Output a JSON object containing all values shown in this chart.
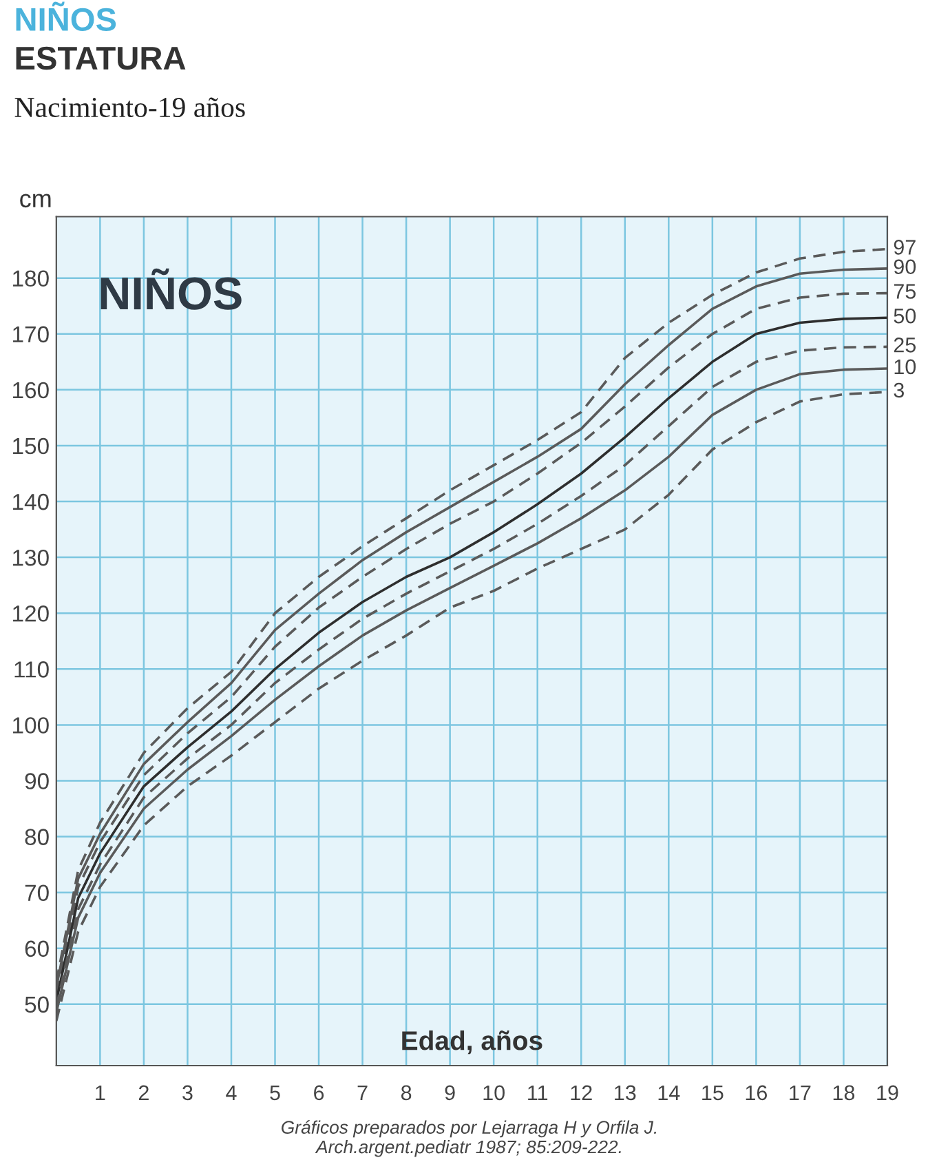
{
  "chart_data": {
    "type": "line",
    "title": "ESTATURA",
    "subtitle": "Nacimiento-19 años",
    "ylabel": "cm",
    "xlabel": "Edad, años",
    "annotations": [
      "NIÑOS",
      "NIÑOS",
      "Gráficos preparados por Lejarraga H y Orfila J.\nArch.argent.pediatr 1987; 85:209-222."
    ],
    "x": [
      0,
      0.5,
      1,
      2,
      3,
      4,
      5,
      6,
      7,
      8,
      9,
      10,
      11,
      12,
      13,
      14,
      15,
      16,
      17,
      18,
      19
    ],
    "series": [
      {
        "name": "97",
        "color": "#5a5a5a",
        "line_style": "dashed",
        "values": [
          54,
          74,
          82.5,
          95,
          103,
          109.5,
          120,
          126.5,
          132,
          137,
          142,
          146.5,
          151,
          156,
          165.7,
          172,
          177,
          181,
          183.5,
          184.7,
          185.2
        ]
      },
      {
        "name": "90",
        "color": "#5a5a5a",
        "line_style": "solid",
        "values": [
          53,
          72.5,
          80.5,
          93,
          100.5,
          107.5,
          117,
          123.5,
          129.5,
          134.5,
          139,
          143.5,
          148,
          153,
          161,
          168,
          174.5,
          178.5,
          180.8,
          181.5,
          181.7
        ]
      },
      {
        "name": "75",
        "color": "#5a5a5a",
        "line_style": "dashed",
        "values": [
          52,
          71,
          79,
          91,
          98.5,
          105,
          114,
          121,
          126.5,
          131.5,
          136,
          140,
          145,
          150.5,
          157,
          164,
          170,
          174.5,
          176.5,
          177.2,
          177.3
        ]
      },
      {
        "name": "50",
        "color": "#2e2e2e",
        "line_style": "solid",
        "values": [
          50.5,
          69,
          77,
          89,
          96,
          102.4,
          110,
          116.5,
          122,
          126.5,
          130,
          134.5,
          139.5,
          145,
          151.5,
          158.5,
          165,
          170,
          172,
          172.7,
          172.9
        ]
      },
      {
        "name": "25",
        "color": "#5a5a5a",
        "line_style": "dashed",
        "values": [
          49.5,
          67,
          75,
          87,
          94,
          100,
          107.5,
          113.5,
          119,
          123.5,
          127.5,
          131.5,
          136,
          141,
          146.5,
          153.5,
          160.5,
          165,
          167,
          167.6,
          167.7
        ]
      },
      {
        "name": "10",
        "color": "#5a5a5a",
        "line_style": "solid",
        "values": [
          48.5,
          65.5,
          73.5,
          85,
          92,
          98,
          104.5,
          110.5,
          116,
          120.5,
          124.5,
          128.5,
          132.5,
          137,
          142,
          148,
          155.5,
          160,
          162.8,
          163.6,
          163.8
        ]
      },
      {
        "name": "3",
        "color": "#5a5a5a",
        "line_style": "dashed",
        "values": [
          47,
          63,
          71,
          82,
          89,
          94.5,
          100.5,
          106.5,
          111.5,
          116,
          121,
          124,
          128,
          131.5,
          135,
          141.2,
          149.3,
          154.2,
          157.9,
          159.2,
          159.6
        ]
      }
    ],
    "xlim": [
      0,
      19
    ],
    "ylim": [
      39,
      191
    ],
    "xticks": [
      1,
      2,
      3,
      4,
      5,
      6,
      7,
      8,
      9,
      10,
      11,
      12,
      13,
      14,
      15,
      16,
      17,
      18,
      19
    ],
    "yticks": [
      50,
      60,
      70,
      80,
      90,
      100,
      110,
      120,
      130,
      140,
      150,
      160,
      170,
      180
    ],
    "grid": true,
    "legend": false
  }
}
